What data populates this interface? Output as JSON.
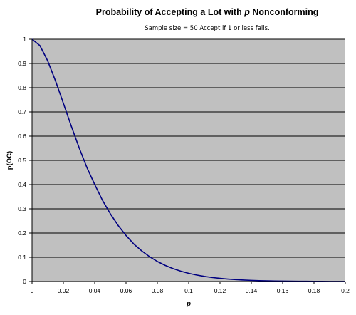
{
  "chart_data": {
    "type": "line",
    "title": "Probability of Accepting a Lot with p Nonconforming",
    "title_parts": {
      "before": "Probability of Accepting a Lot with ",
      "italic": "p",
      "after": " Nonconforming"
    },
    "subtitle": "Sample size = 50 Accept if 1 or less fails.",
    "xlabel": "p",
    "ylabel": "p(OC)",
    "xlim": [
      0,
      0.2
    ],
    "ylim": [
      0,
      1
    ],
    "x_ticks": [
      "0",
      "0.02",
      "0.04",
      "0.06",
      "0.08",
      "0.1",
      "0.12",
      "0.14",
      "0.16",
      "0.18",
      "0.2"
    ],
    "y_ticks": [
      "0",
      "0.1",
      "0.2",
      "0.3",
      "0.4",
      "0.5",
      "0.6",
      "0.7",
      "0.8",
      "0.9",
      "1"
    ],
    "grid": "horizontal",
    "legend": "none",
    "series": [
      {
        "x": [
          0,
          0.005,
          0.01,
          0.015,
          0.02,
          0.025,
          0.03,
          0.035,
          0.04,
          0.045,
          0.05,
          0.055,
          0.06,
          0.065,
          0.07,
          0.075,
          0.08,
          0.085,
          0.09,
          0.095,
          0.1,
          0.105,
          0.11,
          0.115,
          0.12,
          0.125,
          0.13,
          0.135,
          0.14,
          0.145,
          0.15,
          0.155,
          0.16,
          0.165,
          0.17,
          0.175,
          0.18,
          0.185,
          0.19,
          0.195,
          0.2
        ],
        "values": [
          1,
          0.9739,
          0.9106,
          0.8278,
          0.7358,
          0.6424,
          0.5532,
          0.4708,
          0.4005,
          0.3348,
          0.2794,
          0.2309,
          0.19,
          0.1545,
          0.1265,
          0.1025,
          0.0827,
          0.0665,
          0.0532,
          0.0425,
          0.0338,
          0.0268,
          0.0211,
          0.0166,
          0.0131,
          0.0102,
          0.008,
          0.0062,
          0.0048,
          0.0037,
          0.0029,
          0.0022,
          0.0017,
          0.0013,
          0.001,
          0.0008,
          0.0006,
          0.0004,
          0.0003,
          0.0002,
          0.0002
        ]
      }
    ],
    "colors": {
      "plot_background": "#c0c0c0",
      "line": "#000080",
      "gridline": "#000000",
      "axis": "#000000"
    }
  }
}
